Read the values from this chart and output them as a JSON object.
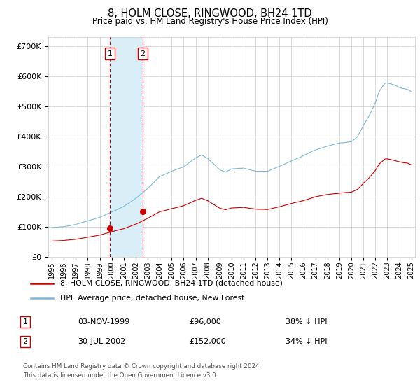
{
  "title": "8, HOLM CLOSE, RINGWOOD, BH24 1TD",
  "subtitle": "Price paid vs. HM Land Registry's House Price Index (HPI)",
  "ylabel_ticks": [
    "£0",
    "£100K",
    "£200K",
    "£300K",
    "£400K",
    "£500K",
    "£600K",
    "£700K"
  ],
  "ytick_values": [
    0,
    100000,
    200000,
    300000,
    400000,
    500000,
    600000,
    700000
  ],
  "ylim": [
    0,
    730000
  ],
  "transaction1": {
    "date_num": 1999.84,
    "price": 96000,
    "label": "1"
  },
  "transaction2": {
    "date_num": 2002.58,
    "price": 152000,
    "label": "2"
  },
  "legend_line1": "8, HOLM CLOSE, RINGWOOD, BH24 1TD (detached house)",
  "legend_line2": "HPI: Average price, detached house, New Forest",
  "table_row1": [
    "1",
    "03-NOV-1999",
    "£96,000",
    "38% ↓ HPI"
  ],
  "table_row2": [
    "2",
    "30-JUL-2002",
    "£152,000",
    "34% ↓ HPI"
  ],
  "footer1": "Contains HM Land Registry data © Crown copyright and database right 2024.",
  "footer2": "This data is licensed under the Open Government Licence v3.0.",
  "hpi_color": "#7ab8d9",
  "price_color": "#cc0000",
  "shade_color": "#daeef7",
  "vline_color": "#cc0000",
  "grid_color": "#cccccc",
  "background_color": "#ffffff",
  "xlim_left": 1994.7,
  "xlim_right": 2025.3
}
